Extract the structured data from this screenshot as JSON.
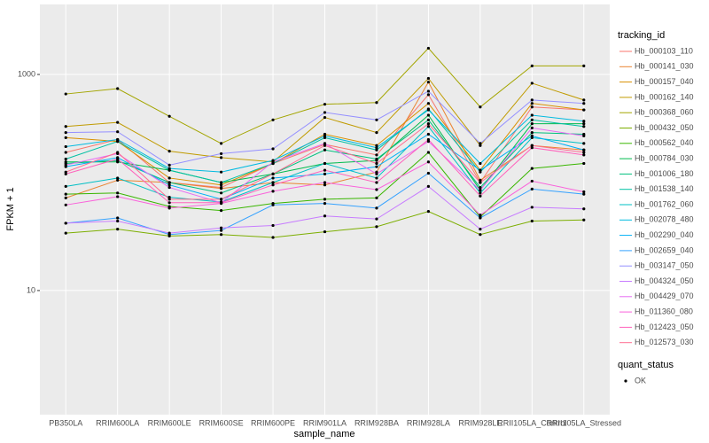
{
  "chart_data": {
    "type": "line",
    "x_label": "sample_name",
    "y_label": "FPKM + 1",
    "log_y": true,
    "grid": true,
    "categories": [
      "PB350LA",
      "RRIM600LA",
      "RRIM600LE",
      "RRIM600SE",
      "RRIM600PE",
      "RRIM901LA",
      "RRIM928BA",
      "RRIM928LA",
      "RRIM928LE",
      "RRII105LA_Control",
      "RRII105LA_Stressed"
    ],
    "ylim": [
      0.71,
      4450
    ],
    "yticks": [
      10,
      1000
    ],
    "legend_title": "tracking_id",
    "status_legend": {
      "title": "quant_status",
      "label": "OK",
      "color": "#000000"
    },
    "series": [
      {
        "name": "Hb_000103_110",
        "color": "#F8766D",
        "values": [
          190,
          250,
          100,
          90,
          150,
          225,
          180,
          650,
          100,
          500,
          470
        ]
      },
      {
        "name": "Hb_000141_030",
        "color": "#EA8331",
        "values": [
          72,
          105,
          100,
          88,
          100,
          95,
          125,
          850,
          105,
          220,
          200
        ]
      },
      {
        "name": "Hb_000157_040",
        "color": "#D89000",
        "values": [
          260,
          240,
          110,
          95,
          150,
          280,
          220,
          540,
          130,
          540,
          470
        ]
      },
      {
        "name": "Hb_000162_140",
        "color": "#C09B00",
        "values": [
          330,
          360,
          195,
          170,
          155,
          400,
          290,
          920,
          220,
          830,
          580
        ]
      },
      {
        "name": "Hb_000368_060",
        "color": "#A3A500",
        "values": [
          660,
          740,
          410,
          230,
          380,
          530,
          550,
          1750,
          500,
          1200,
          1200
        ]
      },
      {
        "name": "Hb_000432_050",
        "color": "#7CAE00",
        "values": [
          34,
          37,
          32,
          33,
          31,
          35,
          39,
          54,
          33,
          44,
          45
        ]
      },
      {
        "name": "Hb_000562_040",
        "color": "#39B600",
        "values": [
          78,
          80,
          60,
          55,
          64,
          70,
          72,
          190,
          48,
          135,
          150
        ]
      },
      {
        "name": "Hb_000784_030",
        "color": "#00BB4E",
        "values": [
          155,
          155,
          130,
          100,
          120,
          150,
          160,
          420,
          85,
          350,
          350
        ]
      },
      {
        "name": "Hb_001006_180",
        "color": "#00BF7D",
        "values": [
          150,
          160,
          100,
          80,
          120,
          200,
          165,
          380,
          90,
          290,
          280
        ]
      },
      {
        "name": "Hb_001538_140",
        "color": "#00C1A3",
        "values": [
          165,
          240,
          130,
          100,
          150,
          260,
          200,
          480,
          125,
          380,
          330
        ]
      },
      {
        "name": "Hb_001762_060",
        "color": "#00BFC4",
        "values": [
          92,
          110,
          73,
          66,
          100,
          150,
          110,
          330,
          80,
          260,
          230
        ]
      },
      {
        "name": "Hb_002078_480",
        "color": "#00BAE0",
        "values": [
          215,
          250,
          135,
          125,
          160,
          270,
          210,
          470,
          150,
          420,
          370
        ]
      },
      {
        "name": "Hb_002290_040",
        "color": "#00B0F6",
        "values": [
          140,
          170,
          95,
          70,
          110,
          120,
          140,
          280,
          130,
          270,
          200
        ]
      },
      {
        "name": "Hb_002659_040",
        "color": "#35A2FF",
        "values": [
          42,
          47,
          33,
          36,
          62,
          64,
          58,
          122,
          47,
          87,
          78
        ]
      },
      {
        "name": "Hb_003147_050",
        "color": "#9590FF",
        "values": [
          290,
          295,
          145,
          185,
          205,
          445,
          380,
          700,
          230,
          580,
          540
        ]
      },
      {
        "name": "Hb_004324_050",
        "color": "#C77CFF",
        "values": [
          42,
          44,
          34,
          38,
          40,
          49,
          46,
          92,
          37,
          59,
          57
        ]
      },
      {
        "name": "Hb_004429_070",
        "color": "#E76BF3",
        "values": [
          145,
          185,
          90,
          65,
          155,
          230,
          120,
          240,
          85,
          320,
          270
        ]
      },
      {
        "name": "Hb_011360_080",
        "color": "#FA62DB",
        "values": [
          62,
          74,
          58,
          64,
          83,
          100,
          86,
          155,
          50,
          103,
          82
        ]
      },
      {
        "name": "Hb_012423_050",
        "color": "#FF62BC",
        "values": [
          120,
          165,
          65,
          65,
          95,
          130,
          100,
          250,
          75,
          210,
          180
        ]
      },
      {
        "name": "Hb_012573_030",
        "color": "#FF6C91",
        "values": [
          125,
          190,
          70,
          70,
          120,
          220,
          150,
          350,
          100,
          220,
          190
        ]
      }
    ]
  }
}
